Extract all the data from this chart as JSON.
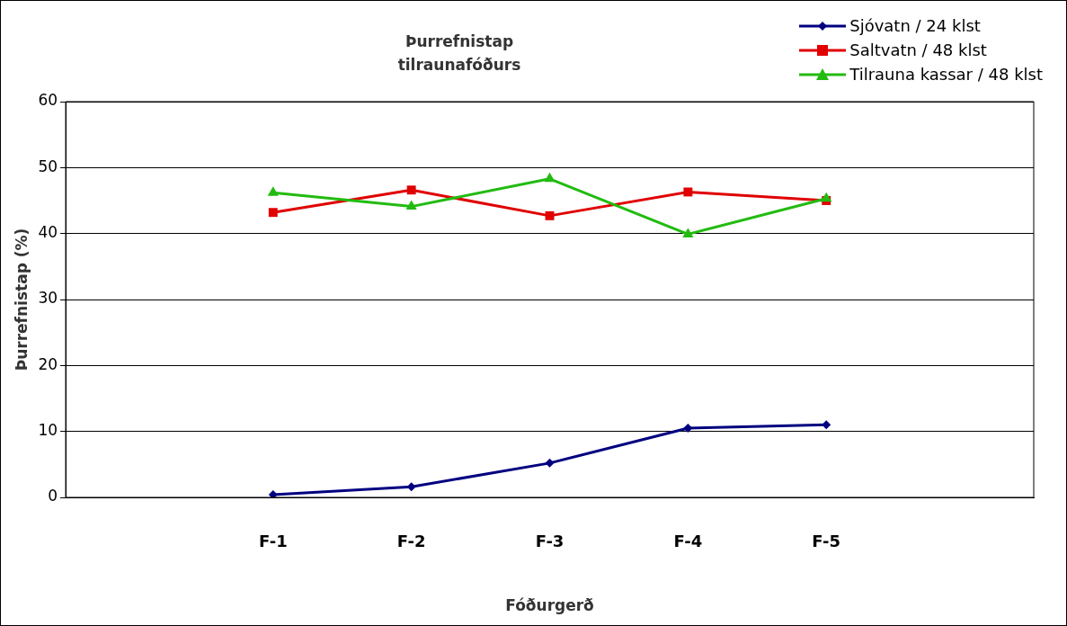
{
  "chart_data": {
    "type": "line",
    "title": "Þurrefnistap\ntilraunafóðurs",
    "xlabel": "Fóðurgerð",
    "ylabel": "Þurrefnistap (%)",
    "categories": [
      null,
      "F-1",
      "F-2",
      "F-3",
      "F-4",
      "F-5",
      null
    ],
    "series": [
      {
        "name": "Sjóvatn / 24 klst",
        "color": "#000080",
        "marker": "diamond",
        "values": [
          null,
          0.4,
          1.6,
          5.2,
          10.5,
          11.0,
          null
        ]
      },
      {
        "name": "Saltvatn / 48 klst",
        "color": "#e00000",
        "marker": "square",
        "values": [
          null,
          43.2,
          46.6,
          42.7,
          46.3,
          45.0,
          null
        ]
      },
      {
        "name": "Tilrauna kassar / 48 klst",
        "color": "#22bb11",
        "marker": "triangle",
        "values": [
          null,
          46.2,
          44.1,
          48.3,
          39.9,
          45.3,
          null
        ]
      }
    ],
    "ylim": [
      0,
      60
    ],
    "yticks": [
      0,
      10,
      20,
      30,
      40,
      50,
      60
    ],
    "grid": "y",
    "legend": "top right",
    "line_style": "solid"
  }
}
